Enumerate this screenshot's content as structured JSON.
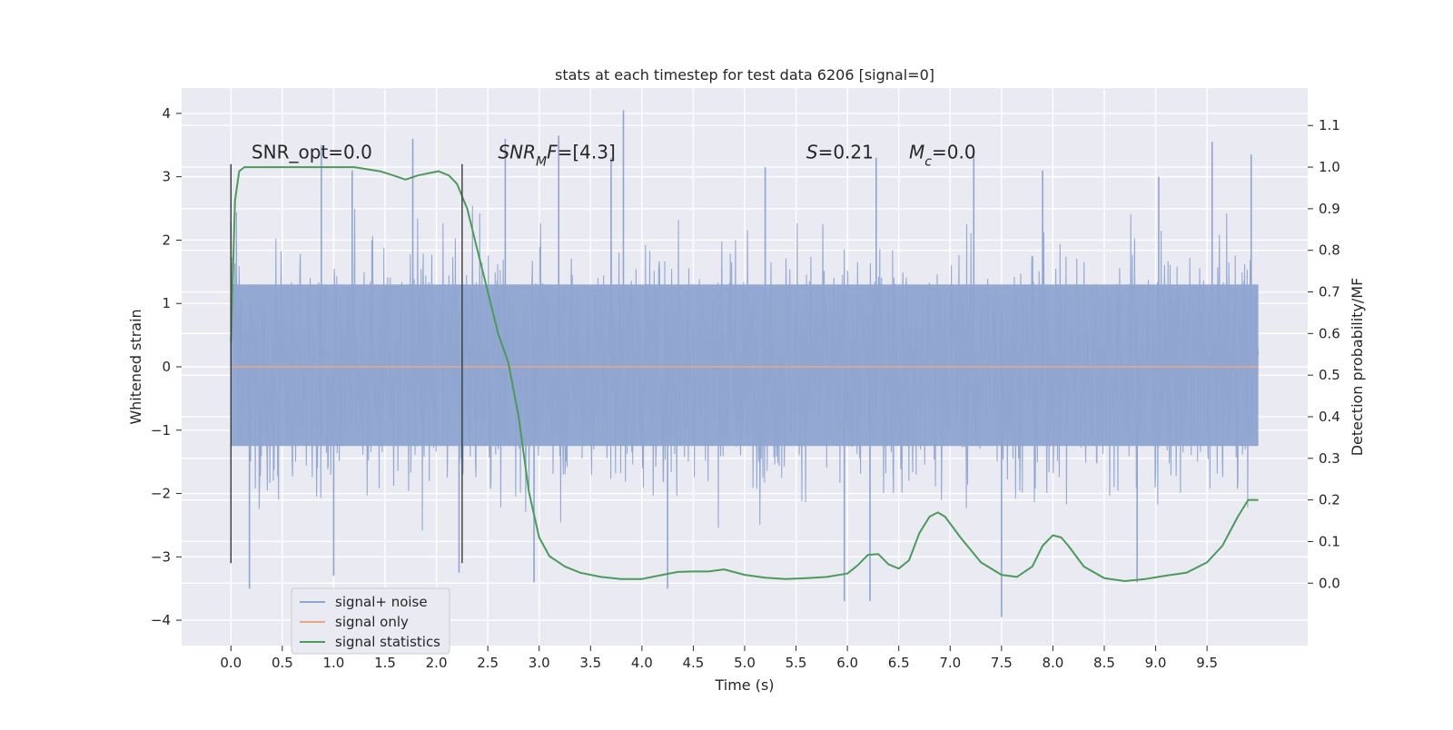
{
  "chart_data": {
    "type": "line",
    "title": "stats at each timestep for test data 6206 [signal=0]",
    "xlabel": "Time (s)",
    "ylabel": "Whitened strain",
    "y2label": "Detection probability/MF",
    "xlim": [
      -0.48,
      10.48
    ],
    "ylim": [
      -4.4,
      4.4
    ],
    "y2lim": [
      -0.15,
      1.19
    ],
    "x_ticks": [
      0.0,
      0.5,
      1.0,
      1.5,
      2.0,
      2.5,
      3.0,
      3.5,
      4.0,
      4.5,
      5.0,
      5.5,
      6.0,
      6.5,
      7.0,
      7.5,
      8.0,
      8.5,
      9.0,
      9.5
    ],
    "x_tick_labels": [
      "0.0",
      "0.5",
      "1.0",
      "1.5",
      "2.0",
      "2.5",
      "3.0",
      "3.5",
      "4.0",
      "4.5",
      "5.0",
      "5.5",
      "6.0",
      "6.5",
      "7.0",
      "7.5",
      "8.0",
      "8.5",
      "9.0",
      "9.5"
    ],
    "y_ticks": [
      -4,
      -3,
      -2,
      -1,
      0,
      1,
      2,
      3,
      4
    ],
    "y_tick_labels": [
      "−4",
      "−3",
      "−2",
      "−1",
      "0",
      "1",
      "2",
      "3",
      "4"
    ],
    "y2_ticks": [
      0.0,
      0.1,
      0.2,
      0.3,
      0.4,
      0.5,
      0.6,
      0.7,
      0.8,
      0.9,
      1.0,
      1.1
    ],
    "y2_tick_labels": [
      "0.0",
      "0.1",
      "0.2",
      "0.3",
      "0.4",
      "0.5",
      "0.6",
      "0.7",
      "0.8",
      "0.9",
      "1.0",
      "1.1"
    ],
    "grid": true,
    "legend_position": "lower-left",
    "vertical_lines": [
      {
        "x": 0.0,
        "y_range": [
          -3.1,
          3.2
        ]
      },
      {
        "x": 2.25,
        "y_range": [
          -3.1,
          3.2
        ]
      }
    ],
    "annotations": [
      {
        "text": "SNR_opt=0.0",
        "x": 0.2,
        "y": 3.2
      },
      {
        "text_parts": [
          {
            "t": "SNR",
            "italic": true
          },
          {
            "t": "M",
            "italic": true,
            "sub": true
          },
          {
            "t": "F",
            "italic": true
          },
          {
            "t": "=[4.3]",
            "italic": false
          }
        ],
        "x": 2.6,
        "y": 3.2
      },
      {
        "text_parts": [
          {
            "t": "S",
            "italic": true
          },
          {
            "t": "=0.21",
            "italic": false
          }
        ],
        "x": 5.6,
        "y": 3.2
      },
      {
        "text_parts": [
          {
            "t": "M",
            "italic": true
          },
          {
            "t": "c",
            "italic": true,
            "sub": true
          },
          {
            "t": "=0.0",
            "italic": false
          }
        ],
        "x": 6.6,
        "y": 3.2
      }
    ],
    "series": [
      {
        "name": "signal+ noise",
        "color": "#8fa5d0",
        "axis": "left",
        "x_range": [
          0.0,
          10.0
        ],
        "description_stats": {
          "dense_band_min": -1.25,
          "dense_band_max": 1.3,
          "typical_peak": 2.5,
          "max": 4.05,
          "min": -3.95
        },
        "notable_peaks": [
          {
            "x": 0.0,
            "y": 2.3
          },
          {
            "x": 0.88,
            "y": 3.5
          },
          {
            "x": 1.18,
            "y": 3.1
          },
          {
            "x": 1.77,
            "y": 3.6
          },
          {
            "x": 2.67,
            "y": 3.6
          },
          {
            "x": 3.19,
            "y": 3.65
          },
          {
            "x": 3.7,
            "y": 3.3
          },
          {
            "x": 3.82,
            "y": 4.05
          },
          {
            "x": 5.2,
            "y": 3.15
          },
          {
            "x": 6.28,
            "y": 3.3
          },
          {
            "x": 7.23,
            "y": 3.35
          },
          {
            "x": 7.9,
            "y": 3.1
          },
          {
            "x": 9.03,
            "y": 3.0
          },
          {
            "x": 9.55,
            "y": 3.55
          },
          {
            "x": 9.93,
            "y": 3.35
          }
        ],
        "notable_troughs": [
          {
            "x": 0.18,
            "y": -3.5
          },
          {
            "x": 1.0,
            "y": -3.3
          },
          {
            "x": 2.22,
            "y": -3.25
          },
          {
            "x": 2.95,
            "y": -3.4
          },
          {
            "x": 4.25,
            "y": -3.5
          },
          {
            "x": 5.97,
            "y": -3.7
          },
          {
            "x": 6.22,
            "y": -3.7
          },
          {
            "x": 7.5,
            "y": -3.95
          },
          {
            "x": 8.82,
            "y": -3.4
          }
        ]
      },
      {
        "name": "signal only",
        "color": "#e8a58a",
        "axis": "left",
        "x": [
          0.0,
          10.0
        ],
        "y": [
          0.0,
          0.0
        ]
      },
      {
        "name": "signal statistics",
        "color": "#4c9a5c",
        "axis": "right",
        "x": [
          0.0,
          0.04,
          0.08,
          0.13,
          0.2,
          0.35,
          0.6,
          0.9,
          1.2,
          1.45,
          1.58,
          1.7,
          1.82,
          1.92,
          2.02,
          2.12,
          2.2,
          2.3,
          2.4,
          2.5,
          2.6,
          2.7,
          2.8,
          2.9,
          3.0,
          3.1,
          3.25,
          3.4,
          3.6,
          3.8,
          4.0,
          4.2,
          4.35,
          4.5,
          4.65,
          4.8,
          5.0,
          5.2,
          5.4,
          5.6,
          5.8,
          6.0,
          6.1,
          6.2,
          6.3,
          6.4,
          6.5,
          6.6,
          6.7,
          6.8,
          6.88,
          6.95,
          7.1,
          7.3,
          7.5,
          7.65,
          7.8,
          7.9,
          8.0,
          8.08,
          8.15,
          8.3,
          8.5,
          8.7,
          8.9,
          9.1,
          9.3,
          9.5,
          9.65,
          9.8,
          9.9,
          10.0
        ],
        "y": [
          0.58,
          0.92,
          0.99,
          1.0,
          1.0,
          1.0,
          1.0,
          1.0,
          1.0,
          0.99,
          0.98,
          0.97,
          0.98,
          0.985,
          0.99,
          0.98,
          0.96,
          0.9,
          0.8,
          0.7,
          0.6,
          0.53,
          0.4,
          0.22,
          0.11,
          0.065,
          0.04,
          0.025,
          0.015,
          0.01,
          0.01,
          0.02,
          0.027,
          0.028,
          0.028,
          0.033,
          0.02,
          0.013,
          0.01,
          0.012,
          0.015,
          0.023,
          0.043,
          0.068,
          0.07,
          0.045,
          0.035,
          0.055,
          0.12,
          0.16,
          0.17,
          0.16,
          0.11,
          0.05,
          0.02,
          0.015,
          0.04,
          0.09,
          0.115,
          0.11,
          0.09,
          0.04,
          0.012,
          0.005,
          0.01,
          0.018,
          0.025,
          0.05,
          0.09,
          0.16,
          0.2,
          0.2
        ]
      }
    ]
  }
}
